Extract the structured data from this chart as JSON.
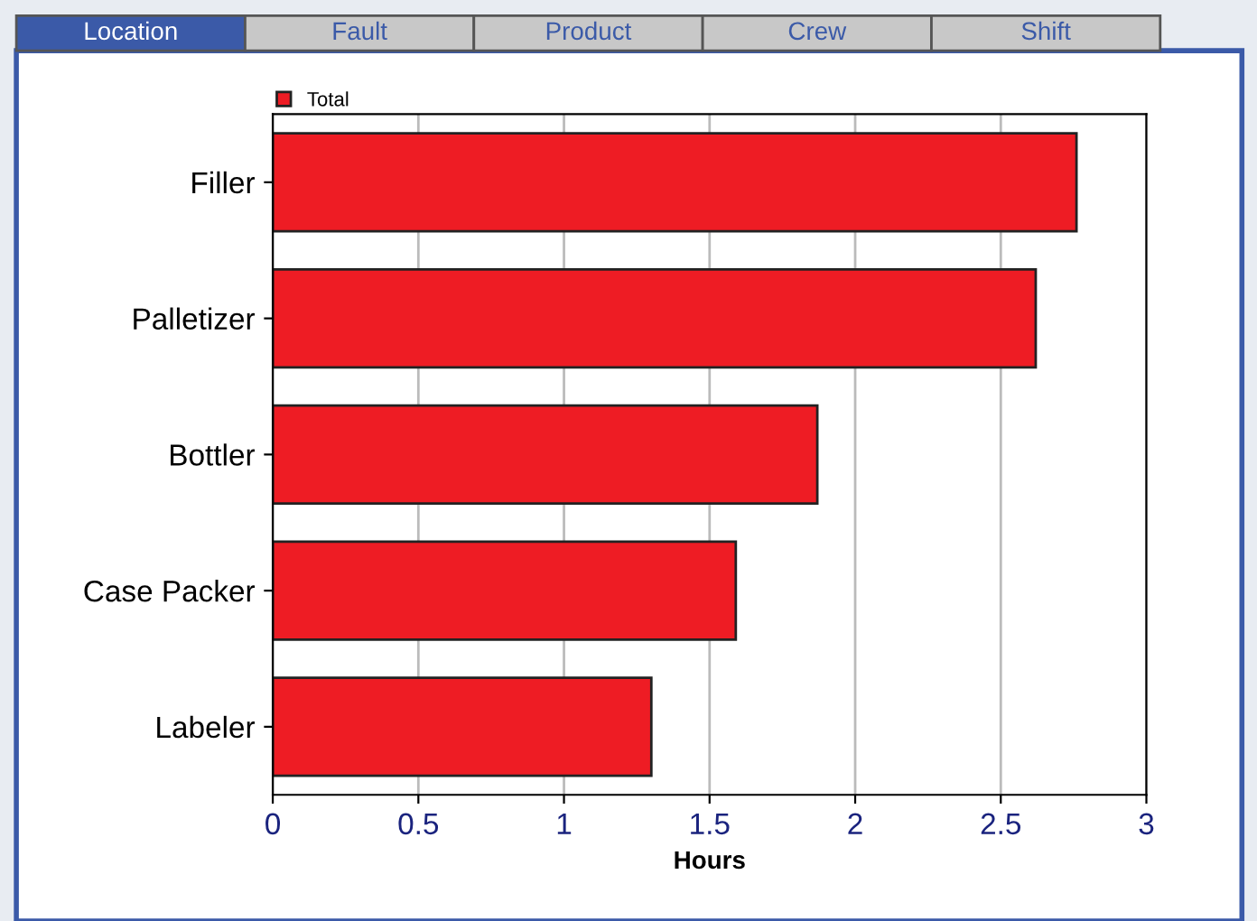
{
  "chart_data": {
    "type": "bar",
    "orientation": "horizontal",
    "xlabel": "Hours",
    "categories": [
      "Filler",
      "Palletizer",
      "Bottler",
      "Case Packer",
      "Labeler"
    ],
    "series": [
      {
        "name": "Total",
        "color": "#ee1c24",
        "values": [
          2.76,
          2.62,
          1.87,
          1.59,
          1.3
        ]
      }
    ],
    "xlim": [
      0,
      3
    ],
    "xticks": [
      0,
      0.5,
      1,
      1.5,
      2,
      2.5,
      3
    ],
    "grid": "x",
    "legend": "top left",
    "annotations": [
      "Location",
      "Fault",
      "Product",
      "Crew",
      "Shift"
    ]
  }
}
